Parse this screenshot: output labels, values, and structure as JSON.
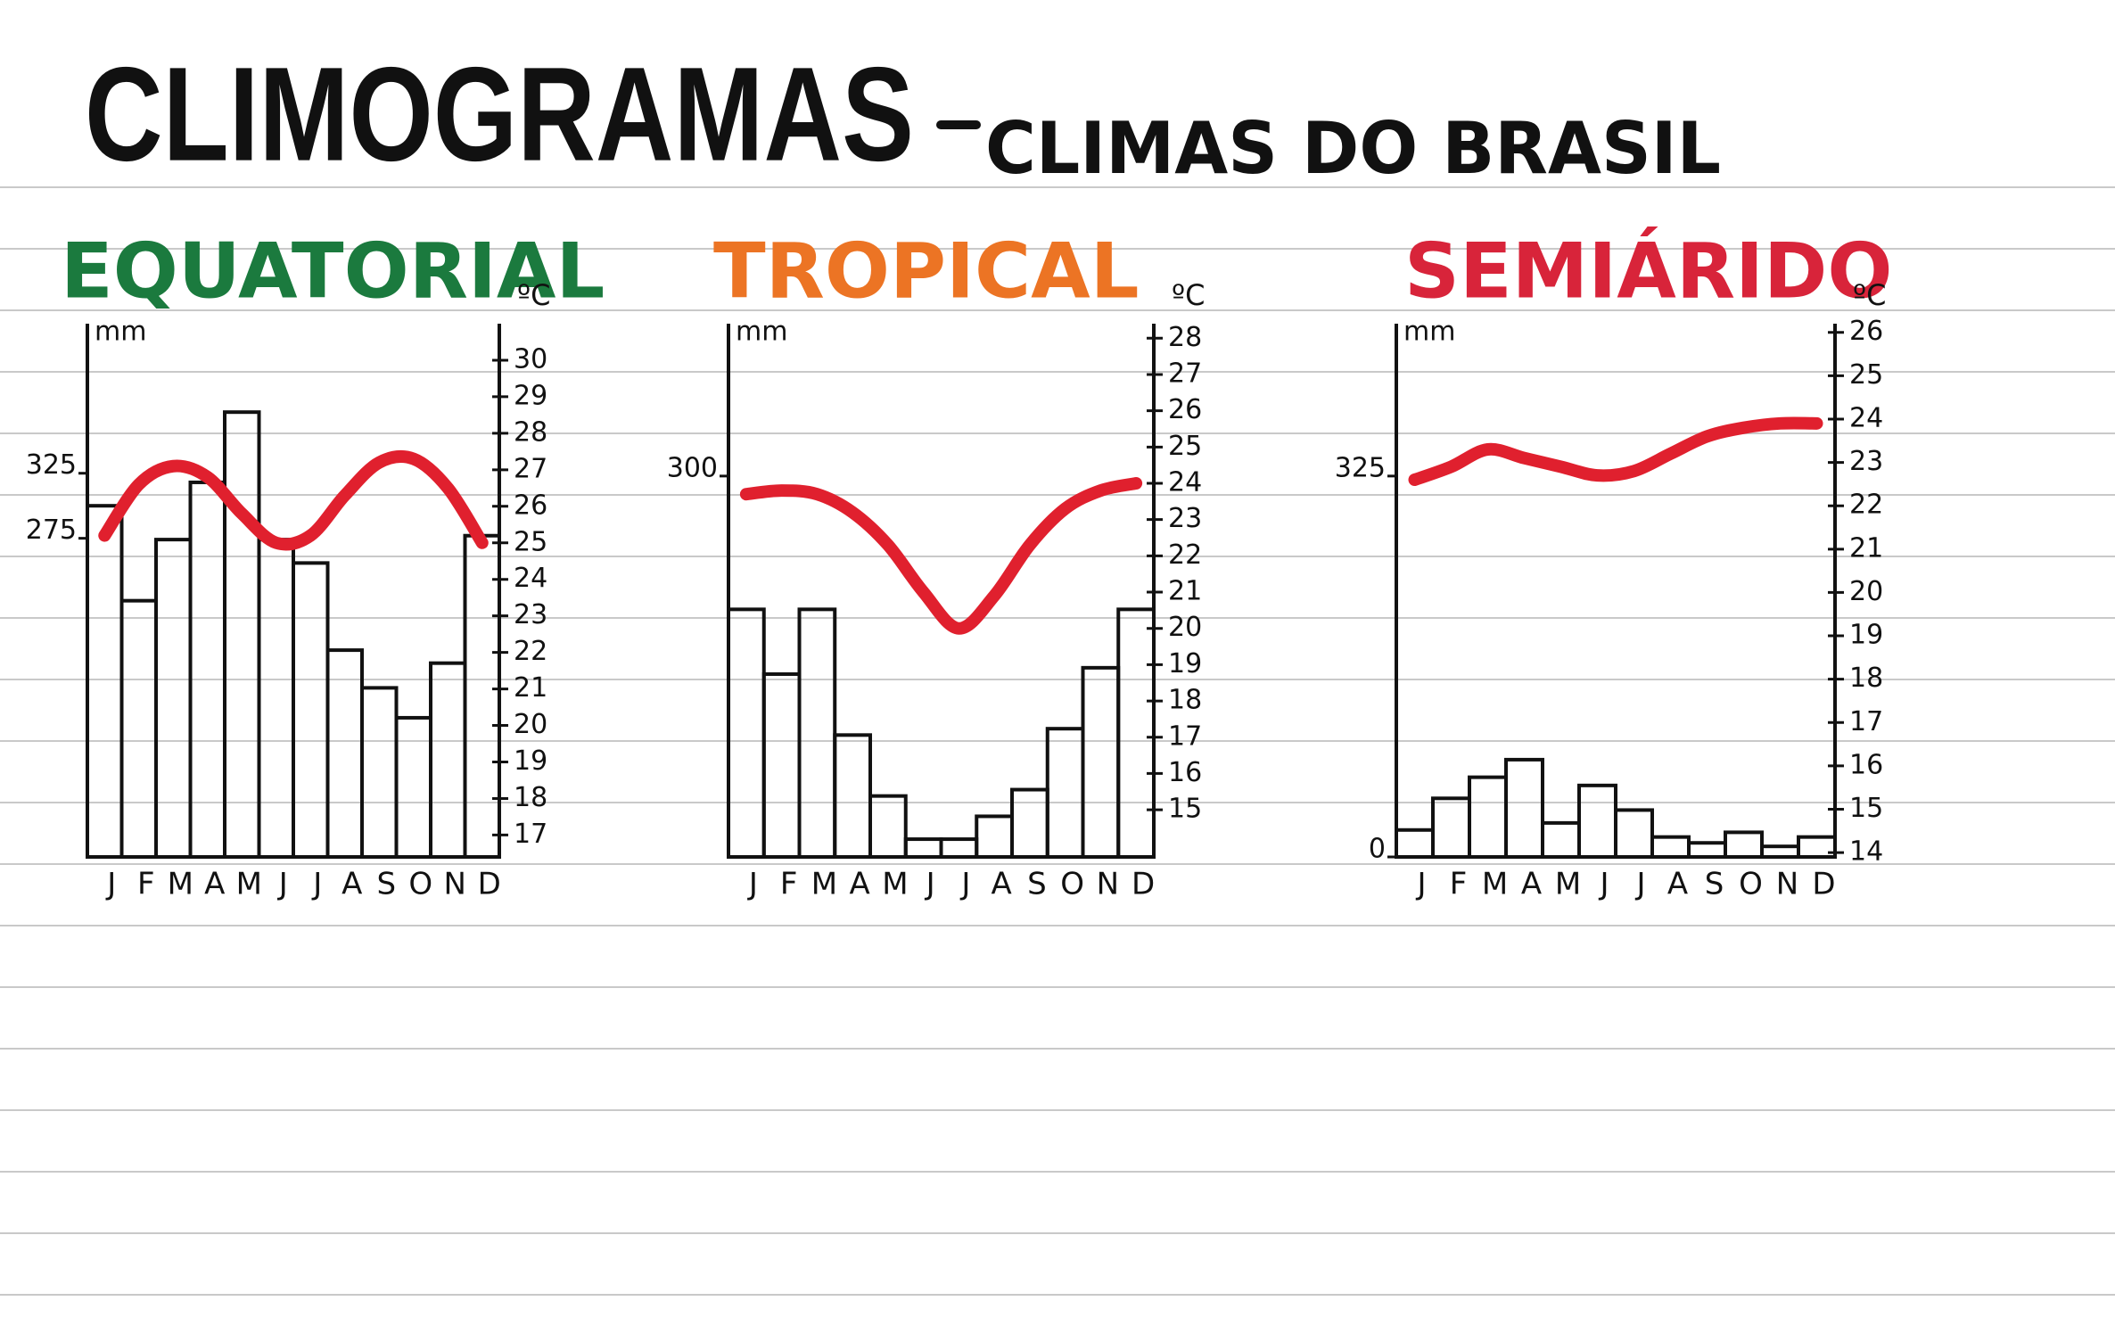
{
  "title": "CLIMOGRAMAS",
  "subtitle": "CLIMAS DO BRASIL",
  "chart_data": [
    {
      "type": "climograph",
      "title": "EQUATORIAL",
      "title_color": "#1b7a3e",
      "y_label": "mm",
      "y2_label": "ºC",
      "categories": [
        "J",
        "F",
        "M",
        "A",
        "M",
        "J",
        "J",
        "A",
        "S",
        "O",
        "N",
        "D"
      ],
      "ylim": [
        30,
        440
      ],
      "yticks": [
        275,
        325
      ],
      "y2lim": [
        16.4,
        31
      ],
      "y2ticks": [
        30,
        29,
        28,
        27,
        26,
        25,
        24,
        23,
        22,
        21,
        20,
        19,
        18,
        17
      ],
      "series": [
        {
          "type": "bar",
          "color": "#111111",
          "values": [
            300,
            227,
            274,
            318,
            372,
            274,
            256,
            189,
            160,
            137,
            179,
            277
          ]
        },
        {
          "type": "line",
          "color": "#e0202e",
          "axis": "y2",
          "values": [
            25.2,
            26.6,
            27.1,
            26.8,
            25.8,
            25.0,
            25.2,
            26.3,
            27.2,
            27.3,
            26.5,
            25.0
          ]
        }
      ]
    },
    {
      "type": "climograph",
      "title": "TROPICAL",
      "title_color": "#ec7424",
      "y_label": "mm",
      "y2_label": "ºC",
      "categories": [
        "J",
        "F",
        "M",
        "A",
        "M",
        "J",
        "J",
        "A",
        "S",
        "O",
        "N",
        "D"
      ],
      "ylim": [
        0,
        420
      ],
      "yticks": [
        300
      ],
      "y2lim": [
        13.7,
        28.4
      ],
      "y2ticks": [
        28,
        27,
        26,
        25,
        24,
        23,
        22,
        21,
        20,
        19,
        18,
        17,
        16,
        15
      ],
      "series": [
        {
          "type": "bar",
          "color": "#111111",
          "values": [
            195,
            144,
            195,
            96,
            48,
            14,
            14,
            32,
            53,
            101,
            149,
            195
          ]
        },
        {
          "type": "line",
          "color": "#e0202e",
          "axis": "y2",
          "values": [
            23.7,
            23.8,
            23.7,
            23.2,
            22.3,
            21.0,
            20.0,
            20.9,
            22.3,
            23.3,
            23.8,
            24.0
          ]
        }
      ]
    },
    {
      "type": "climograph",
      "title": "SEMIÁRIDO",
      "title_color": "#d8243a",
      "y_label": "mm",
      "y2_label": "ºC",
      "categories": [
        "J",
        "F",
        "M",
        "A",
        "M",
        "J",
        "J",
        "A",
        "S",
        "O",
        "N",
        "D"
      ],
      "ylim": [
        0,
        455
      ],
      "yticks": [
        0,
        325
      ],
      "y2lim": [
        13.9,
        26.2
      ],
      "y2ticks": [
        26,
        25,
        24,
        23,
        22,
        21,
        20,
        19,
        18,
        17,
        16,
        15,
        14
      ],
      "series": [
        {
          "type": "bar",
          "color": "#111111",
          "values": [
            23,
            50,
            68,
            83,
            29,
            61,
            40,
            17,
            12,
            21,
            9,
            17
          ]
        },
        {
          "type": "line",
          "color": "#e0202e",
          "axis": "y2",
          "values": [
            22.6,
            22.9,
            23.3,
            23.1,
            22.9,
            22.7,
            22.8,
            23.2,
            23.6,
            23.8,
            23.9,
            23.9
          ]
        }
      ]
    }
  ]
}
